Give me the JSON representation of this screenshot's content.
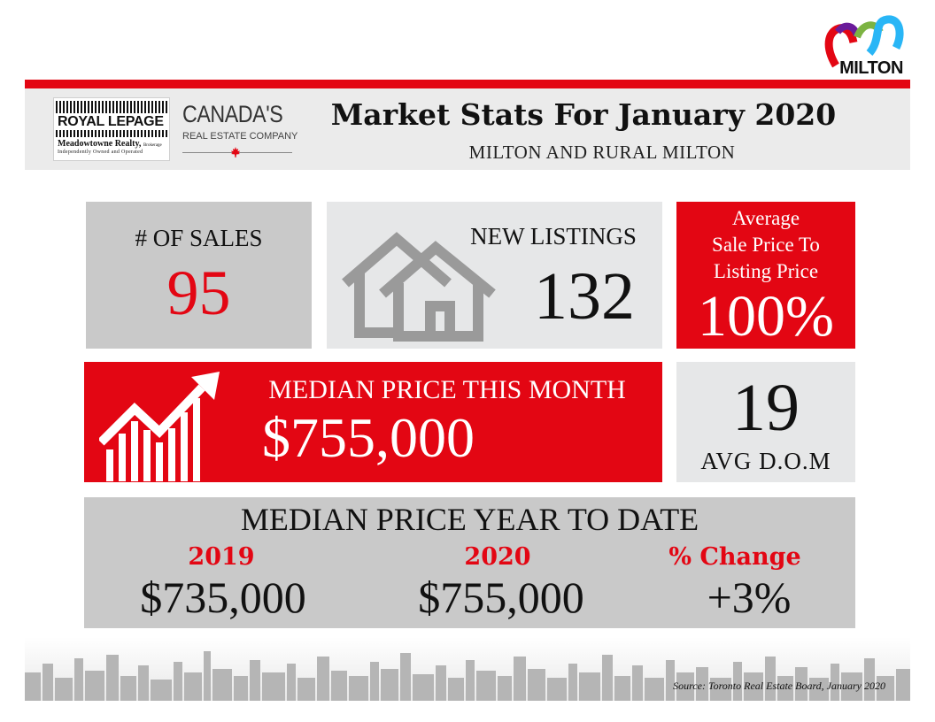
{
  "brand": {
    "milton_logo_text": "MILTON",
    "royal_lepage": "ROYAL LEPAGE",
    "brokerage_name": "Meadowtowne Realty,",
    "brokerage_suffix": "Brokerage",
    "brokerage_tagline": "Independently Owned and Operated",
    "canada_line1": "CANADA'S",
    "canada_line2": "REAL ESTATE COMPANY"
  },
  "header": {
    "title": "Market Stats For January 2020",
    "subtitle": "MILTON AND RURAL MILTON"
  },
  "stats": {
    "sales_label": "# OF SALES",
    "sales_value": "95",
    "listings_label": "NEW LISTINGS",
    "listings_value": "132",
    "ratio_label_line1": "Average",
    "ratio_label_line2": "Sale Price To",
    "ratio_label_line3": "Listing Price",
    "ratio_value": "100%",
    "median_label": "MEDIAN PRICE THIS MONTH",
    "median_value": "$755,000",
    "dom_value": "19",
    "dom_label": "AVG D.O.M"
  },
  "ytd": {
    "title": "MEDIAN PRICE YEAR TO DATE",
    "col1_label": "2019",
    "col1_value": "$735,000",
    "col2_label": "2020",
    "col2_value": "$755,000",
    "col3_label": "% Change",
    "col3_value": "+3%"
  },
  "footer": {
    "source": "Source: Toronto Real Estate Board, January 2020"
  },
  "colors": {
    "red": "#e30613",
    "gray_box": "#c9c9c9",
    "light_box": "#e6e7e8"
  },
  "icons": [
    "milton-logo-icon",
    "maple-leaf-icon",
    "house-icon",
    "rising-chart-icon",
    "skyline-icon"
  ]
}
